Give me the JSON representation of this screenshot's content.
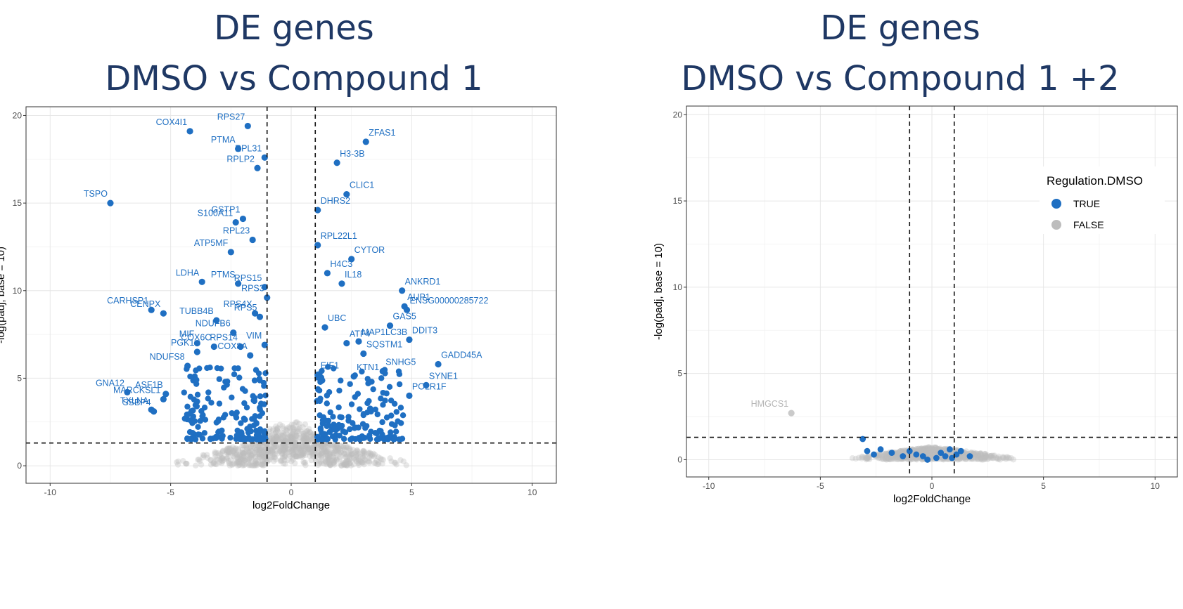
{
  "panels": {
    "left": {
      "title_line1": "DE genes",
      "title_line2": "DMSO vs Compound 1"
    },
    "right": {
      "title_line1": "DE genes",
      "title_line2": "DMSO vs Compound 1 +2"
    }
  },
  "colors": {
    "true": "#1f6fc2",
    "false": "#bdbdbd",
    "label_false": "#b5b5b5"
  },
  "chart_data": [
    {
      "type": "scatter",
      "chart_kind": "volcano",
      "xlabel": "log2FoldChange",
      "ylabel": "-log(padj, base = 10)",
      "xlim": [
        -11,
        11
      ],
      "ylim": [
        -1,
        20.5
      ],
      "xticks": [
        -10,
        -5,
        0,
        5,
        10
      ],
      "yticks": [
        0,
        5,
        10,
        15,
        20
      ],
      "grid": true,
      "thresholds": {
        "x": [
          -1,
          1
        ],
        "y": 1.3
      },
      "legend": null,
      "labeled_points": [
        {
          "gene": "COX4I1",
          "x": -4.2,
          "y": 19.1
        },
        {
          "gene": "RPS27",
          "x": -1.8,
          "y": 19.4
        },
        {
          "gene": "PTMA",
          "x": -2.2,
          "y": 18.1
        },
        {
          "gene": "RPL31",
          "x": -1.1,
          "y": 17.6
        },
        {
          "gene": "RPLP2",
          "x": -1.4,
          "y": 17.0
        },
        {
          "gene": "ZFAS1",
          "x": 3.1,
          "y": 18.5
        },
        {
          "gene": "H3-3B",
          "x": 1.9,
          "y": 17.3
        },
        {
          "gene": "TSPO",
          "x": -7.5,
          "y": 15.0
        },
        {
          "gene": "CLIC1",
          "x": 2.3,
          "y": 15.5
        },
        {
          "gene": "GSTP1",
          "x": -2.0,
          "y": 14.1
        },
        {
          "gene": "DHRS2",
          "x": 1.1,
          "y": 14.6
        },
        {
          "gene": "S100A11",
          "x": -2.3,
          "y": 13.9
        },
        {
          "gene": "RPL23",
          "x": -1.6,
          "y": 12.9
        },
        {
          "gene": "RPL22L1",
          "x": 1.1,
          "y": 12.6
        },
        {
          "gene": "ATP5MF",
          "x": -2.5,
          "y": 12.2
        },
        {
          "gene": "CYTOR",
          "x": 2.5,
          "y": 11.8
        },
        {
          "gene": "H4C3",
          "x": 1.5,
          "y": 11.0
        },
        {
          "gene": "LDHA",
          "x": -3.7,
          "y": 10.5
        },
        {
          "gene": "PTMS",
          "x": -2.2,
          "y": 10.4
        },
        {
          "gene": "RPS15",
          "x": -1.1,
          "y": 10.2
        },
        {
          "gene": "IL18",
          "x": 2.1,
          "y": 10.4
        },
        {
          "gene": "ANKRD1",
          "x": 4.6,
          "y": 10.0
        },
        {
          "gene": "RPS3",
          "x": -1.0,
          "y": 9.6
        },
        {
          "gene": "AUP1",
          "x": 4.7,
          "y": 9.1
        },
        {
          "gene": "ENSG00000285722",
          "x": 4.8,
          "y": 8.9
        },
        {
          "gene": "CARHSP1",
          "x": -5.8,
          "y": 8.9
        },
        {
          "gene": "CENPX",
          "x": -5.3,
          "y": 8.7
        },
        {
          "gene": "RPS4X",
          "x": -1.5,
          "y": 8.7
        },
        {
          "gene": "TUBB4B",
          "x": -3.1,
          "y": 8.3
        },
        {
          "gene": "RPS5",
          "x": -1.3,
          "y": 8.5
        },
        {
          "gene": "UBC",
          "x": 1.4,
          "y": 7.9
        },
        {
          "gene": "GAS5",
          "x": 4.1,
          "y": 8.0
        },
        {
          "gene": "NDUFB6",
          "x": -2.4,
          "y": 7.6
        },
        {
          "gene": "MAP1LC3B",
          "x": 2.8,
          "y": 7.1
        },
        {
          "gene": "ATF4",
          "x": 2.3,
          "y": 7.0
        },
        {
          "gene": "RPS14",
          "x": -2.1,
          "y": 6.8
        },
        {
          "gene": "VIM",
          "x": -1.1,
          "y": 6.9
        },
        {
          "gene": "MIF",
          "x": -3.9,
          "y": 7.0
        },
        {
          "gene": "DDIT3",
          "x": 4.9,
          "y": 7.2
        },
        {
          "gene": "SQSTM1",
          "x": 3.0,
          "y": 6.4
        },
        {
          "gene": "PGK1",
          "x": -3.9,
          "y": 6.5
        },
        {
          "gene": "COX8A",
          "x": -1.7,
          "y": 6.3
        },
        {
          "gene": "GADD45A",
          "x": 6.1,
          "y": 5.8
        },
        {
          "gene": "NDUFS8",
          "x": -4.3,
          "y": 5.7
        },
        {
          "gene": "COX6C",
          "x": -3.2,
          "y": 6.8
        },
        {
          "gene": "KTN1",
          "x": 2.6,
          "y": 5.1
        },
        {
          "gene": "SNHG5",
          "x": 3.8,
          "y": 5.4
        },
        {
          "gene": "SYNE1",
          "x": 5.6,
          "y": 4.6
        },
        {
          "gene": "EIF1",
          "x": 1.1,
          "y": 5.2
        },
        {
          "gene": "GNA12",
          "x": -6.8,
          "y": 4.2
        },
        {
          "gene": "ASF1B",
          "x": -5.2,
          "y": 4.1
        },
        {
          "gene": "POLR1F",
          "x": 4.9,
          "y": 4.0
        },
        {
          "gene": "MARCKSL1",
          "x": -5.3,
          "y": 3.8
        },
        {
          "gene": "TXLNA",
          "x": -5.8,
          "y": 3.2
        },
        {
          "gene": "SSBP4",
          "x": -5.7,
          "y": 3.1
        }
      ]
    },
    {
      "type": "scatter",
      "chart_kind": "volcano",
      "xlabel": "log2FoldChange",
      "ylabel": "-log(padj, base = 10)",
      "xlim": [
        -11,
        11
      ],
      "ylim": [
        -1,
        20.5
      ],
      "xticks": [
        -10,
        -5,
        0,
        5,
        10
      ],
      "yticks": [
        0,
        5,
        10,
        15,
        20
      ],
      "grid": true,
      "thresholds": {
        "x": [
          -1,
          1
        ],
        "y": 1.3
      },
      "legend": {
        "title": "Regulation.DMSO",
        "entries": [
          "TRUE",
          "FALSE"
        ],
        "position": "right"
      },
      "labeled_points": [
        {
          "gene": "HMGCS1",
          "x": -6.3,
          "y": 2.7,
          "significant": false
        }
      ],
      "significant_points": [
        {
          "x": -3.1,
          "y": 1.2
        },
        {
          "x": -2.9,
          "y": 0.5
        },
        {
          "x": -2.6,
          "y": 0.3
        },
        {
          "x": -2.3,
          "y": 0.6
        },
        {
          "x": -1.8,
          "y": 0.4
        },
        {
          "x": -1.3,
          "y": 0.2
        },
        {
          "x": -1.0,
          "y": 0.5
        },
        {
          "x": -0.7,
          "y": 0.3
        },
        {
          "x": -0.4,
          "y": 0.2
        },
        {
          "x": -0.2,
          "y": 0.0
        },
        {
          "x": 0.2,
          "y": 0.1
        },
        {
          "x": 0.4,
          "y": 0.4
        },
        {
          "x": 0.6,
          "y": 0.2
        },
        {
          "x": 0.8,
          "y": 0.6
        },
        {
          "x": 1.1,
          "y": 0.3
        },
        {
          "x": 1.3,
          "y": 0.5
        },
        {
          "x": 1.7,
          "y": 0.2
        },
        {
          "x": 0.9,
          "y": 0.1
        }
      ]
    }
  ]
}
